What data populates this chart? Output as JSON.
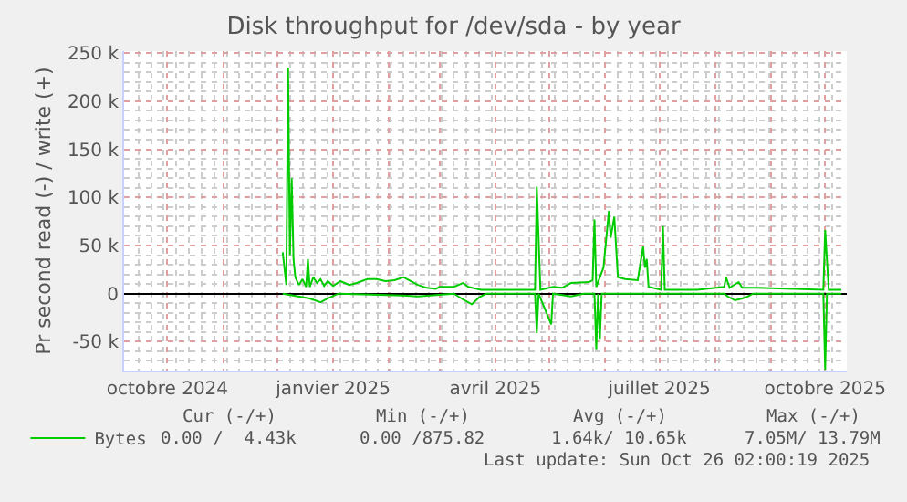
{
  "chart_data": {
    "type": "line",
    "title": "Disk throughput for /dev/sda - by year",
    "ylabel": "Pr second read (-) / write (+)",
    "xlim": [
      "2024-09-07",
      "2025-10-13"
    ],
    "ylim": [
      -80000,
      252000
    ],
    "xticks": [
      {
        "value": "2024-10-01",
        "label": "octobre 2024"
      },
      {
        "value": "2024-11-01",
        "label": null
      },
      {
        "value": "2024-12-01",
        "label": null
      },
      {
        "value": "2025-01-01",
        "label": "janvier 2025"
      },
      {
        "value": "2025-02-01",
        "label": null
      },
      {
        "value": "2025-03-01",
        "label": null
      },
      {
        "value": "2025-04-01",
        "label": "avril 2025"
      },
      {
        "value": "2025-05-01",
        "label": null
      },
      {
        "value": "2025-06-01",
        "label": null
      },
      {
        "value": "2025-07-01",
        "label": "juillet 2025"
      },
      {
        "value": "2025-08-01",
        "label": null
      },
      {
        "value": "2025-09-01",
        "label": null
      },
      {
        "value": "2025-10-01",
        "label": "octobre 2025"
      }
    ],
    "yticks": [
      {
        "value": -50000,
        "label": "-50 k"
      },
      0,
      {
        "value": 50000,
        "label": "50 k"
      },
      {
        "value": 100000,
        "label": "100 k"
      },
      {
        "value": 150000,
        "label": "150 k"
      },
      {
        "value": 200000,
        "label": "200 k"
      },
      {
        "value": 250000,
        "label": "250 k"
      }
    ],
    "grid": true,
    "legend": "bottom left",
    "marker": "none",
    "line_style": "solid",
    "series": [
      {
        "name": "Bytes",
        "color": "#00cc00",
        "x": [
          "2024-12-04",
          "2024-12-06",
          "2024-12-07",
          "2024-12-08",
          "2024-12-09",
          "2024-12-10",
          "2024-12-11",
          "2024-12-13",
          "2024-12-15",
          "2024-12-17",
          "2024-12-18",
          "2024-12-19",
          "2024-12-21",
          "2024-12-23",
          "2024-12-25",
          "2024-12-27",
          "2024-12-29",
          "2025-01-01",
          "2025-01-05",
          "2025-01-10",
          "2025-01-14",
          "2025-01-20",
          "2025-01-25",
          "2025-01-30",
          "2025-02-04",
          "2025-02-09",
          "2025-02-13",
          "2025-02-17",
          "2025-02-22",
          "2025-02-27",
          "2025-03-01",
          "2025-03-09",
          "2025-03-14",
          "2025-03-17",
          "2025-03-24",
          "2025-04-23",
          "2025-04-24",
          "2025-04-26",
          "2025-05-03",
          "2025-05-08",
          "2025-05-13",
          "2025-05-23",
          "2025-05-25",
          "2025-05-26",
          "2025-05-27",
          "2025-05-31",
          "2025-06-03",
          "2025-06-04",
          "2025-06-06",
          "2025-06-08",
          "2025-06-12",
          "2025-06-19",
          "2025-06-22",
          "2025-06-23",
          "2025-06-24",
          "2025-06-25",
          "2025-07-02",
          "2025-07-03",
          "2025-07-04",
          "2025-07-22",
          "2025-08-06",
          "2025-08-07",
          "2025-08-09",
          "2025-08-14",
          "2025-08-16",
          "2025-08-24",
          "2025-09-30",
          "2025-10-01",
          "2025-10-03",
          "2025-10-10"
        ],
        "values": [
          43000,
          9000,
          235000,
          40000,
          120000,
          36000,
          17000,
          9000,
          15000,
          7000,
          36000,
          7000,
          17000,
          11000,
          15000,
          8000,
          13000,
          8000,
          13000,
          9000,
          11000,
          15000,
          15000,
          13000,
          14000,
          17000,
          13000,
          9000,
          6000,
          5000,
          7000,
          7000,
          11000,
          7000,
          4000,
          4000,
          111000,
          4000,
          7000,
          6000,
          11000,
          12000,
          14000,
          77000,
          7000,
          27000,
          86000,
          58000,
          80000,
          17000,
          15000,
          14000,
          49000,
          27000,
          36000,
          7000,
          4000,
          70000,
          4000,
          4000,
          7000,
          17000,
          6000,
          12000,
          6000,
          6000,
          4000,
          66000,
          4000,
          4000
        ]
      },
      {
        "color": "#00cc00",
        "x": [
          "2024-12-04",
          "2024-12-19",
          "2024-12-25",
          "2024-12-29",
          "2025-01-04",
          "2025-02-09",
          "2025-02-17",
          "2025-03-09",
          "2025-03-14",
          "2025-03-19",
          "2025-03-23",
          "2025-03-27",
          "2025-04-23",
          "2025-04-24",
          "2025-04-25",
          "2025-05-02",
          "2025-05-03",
          "2025-05-13",
          "2025-05-20",
          "2025-05-26",
          "2025-05-27",
          "2025-05-28",
          "2025-05-29",
          "2025-05-30",
          "2025-08-06",
          "2025-08-08",
          "2025-08-12",
          "2025-08-16",
          "2025-08-19",
          "2025-08-22",
          "2025-09-30",
          "2025-10-01",
          "2025-10-02",
          "2025-10-10"
        ],
        "values": [
          0,
          -5000,
          -9000,
          -5000,
          0,
          -2000,
          -3000,
          0,
          -6000,
          -11000,
          -4000,
          0,
          0,
          -41000,
          0,
          -32000,
          0,
          -3000,
          0,
          0,
          -58000,
          0,
          -47000,
          0,
          0,
          -3000,
          -7000,
          -5000,
          -3000,
          0,
          0,
          -79000,
          0,
          0
        ]
      }
    ],
    "annotations": [
      "Cur (-/+)",
      "Min (-/+)",
      "Avg (-/+)",
      "Max (-/+)",
      "0.00 /  4.43k",
      "0.00 /875.82",
      "1.64k/ 10.65k",
      "7.05M/ 13.79M",
      "Last update: Sun Oct 26 02:00:19 2025"
    ]
  }
}
